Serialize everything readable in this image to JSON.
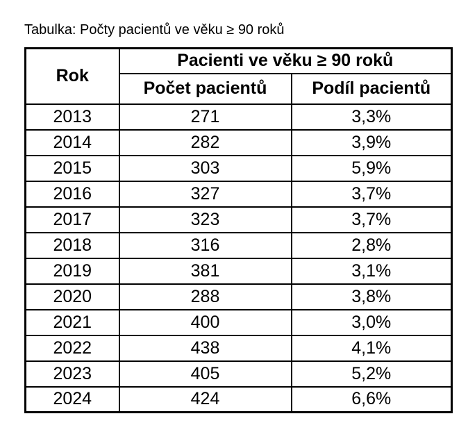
{
  "caption": "Tabulka: Počty pacientů ve věku ≥ 90 roků",
  "table": {
    "header": {
      "year": "Rok",
      "group": "Pacienti ve věku ≥ 90 roků",
      "count": "Počet pacientů",
      "share": "Podíl pacientů"
    },
    "rows": [
      {
        "year": "2013",
        "count": "271",
        "share": "3,3%"
      },
      {
        "year": "2014",
        "count": "282",
        "share": "3,9%"
      },
      {
        "year": "2015",
        "count": "303",
        "share": "5,9%"
      },
      {
        "year": "2016",
        "count": "327",
        "share": "3,7%"
      },
      {
        "year": "2017",
        "count": "323",
        "share": "3,7%"
      },
      {
        "year": "2018",
        "count": "316",
        "share": "2,8%"
      },
      {
        "year": "2019",
        "count": "381",
        "share": "3,1%"
      },
      {
        "year": "2020",
        "count": "288",
        "share": "3,8%"
      },
      {
        "year": "2021",
        "count": "400",
        "share": "3,0%"
      },
      {
        "year": "2022",
        "count": "438",
        "share": "4,1%"
      },
      {
        "year": "2023",
        "count": "405",
        "share": "5,2%"
      },
      {
        "year": "2024",
        "count": "424",
        "share": "6,6%"
      }
    ]
  },
  "colors": {
    "border": "#000000",
    "text": "#000000",
    "background": "#ffffff"
  },
  "chart_data": {
    "type": "table",
    "title": "Tabulka: Počty pacientů ve věku ≥ 90 roků",
    "columns": [
      "Rok",
      "Počet pacientů",
      "Podíl pacientů"
    ],
    "years": [
      2013,
      2014,
      2015,
      2016,
      2017,
      2018,
      2019,
      2020,
      2021,
      2022,
      2023,
      2024
    ],
    "pocet_pacientu": [
      271,
      282,
      303,
      327,
      323,
      316,
      381,
      288,
      400,
      438,
      405,
      424
    ],
    "podil_pacientu_pct": [
      3.3,
      3.9,
      5.9,
      3.7,
      3.7,
      2.8,
      3.1,
      3.8,
      3.0,
      4.1,
      5.2,
      6.6
    ]
  }
}
